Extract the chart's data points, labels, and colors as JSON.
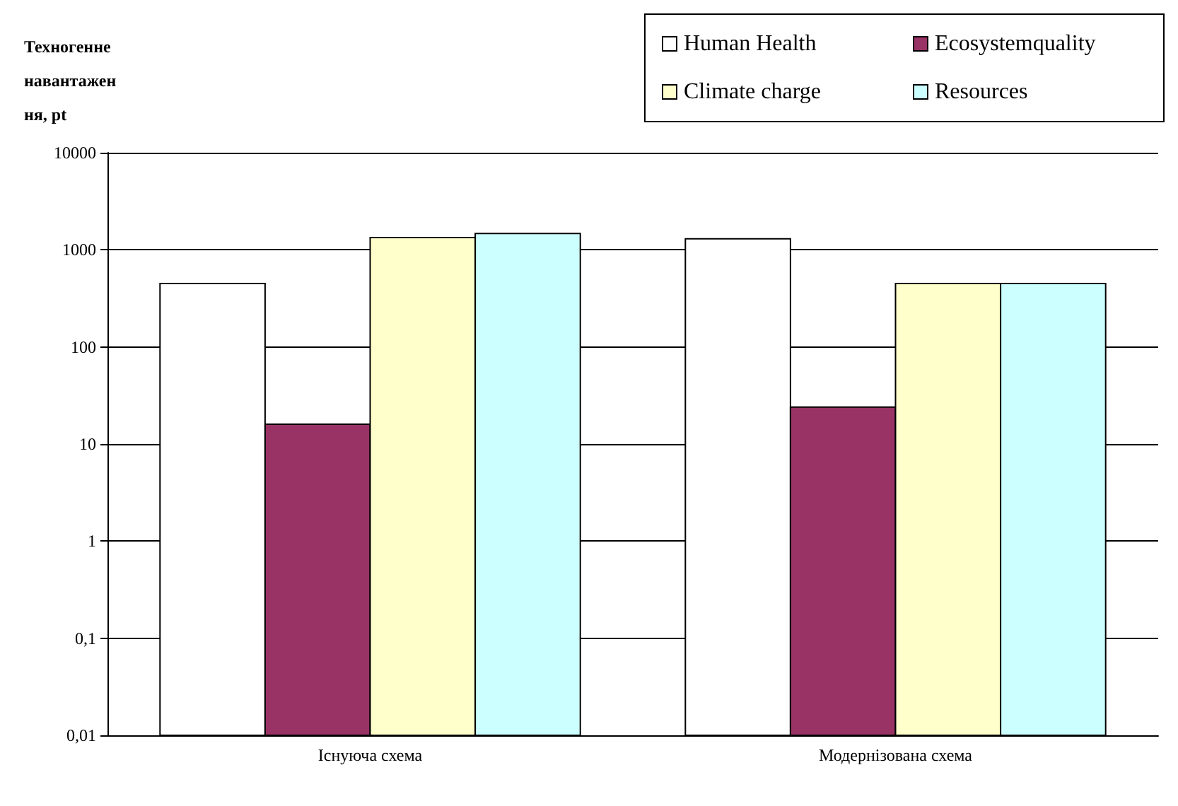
{
  "chart_data": {
    "type": "bar",
    "ylabel": "Техногенне навантаження, pt",
    "categories": [
      "Існуюча схема",
      "Модернізована схема"
    ],
    "series": [
      {
        "name": "Human Health",
        "color": "#ffffff",
        "values": [
          450,
          1300
        ]
      },
      {
        "name": "Ecosystemquality",
        "color": "#993366",
        "values": [
          16,
          24
        ]
      },
      {
        "name": "Climate charge",
        "color": "#ffffcc",
        "values": [
          1340,
          450
        ]
      },
      {
        "name": "Resources",
        "color": "#ccffff",
        "values": [
          1470,
          450
        ]
      }
    ],
    "log": true,
    "ylim": [
      0.01,
      10000
    ],
    "yticks": [
      {
        "value": 0.01,
        "label": "0,01"
      },
      {
        "value": 0.1,
        "label": "0,1"
      },
      1,
      10,
      100,
      1000,
      10000
    ],
    "grid": "y",
    "legend": "top right"
  }
}
